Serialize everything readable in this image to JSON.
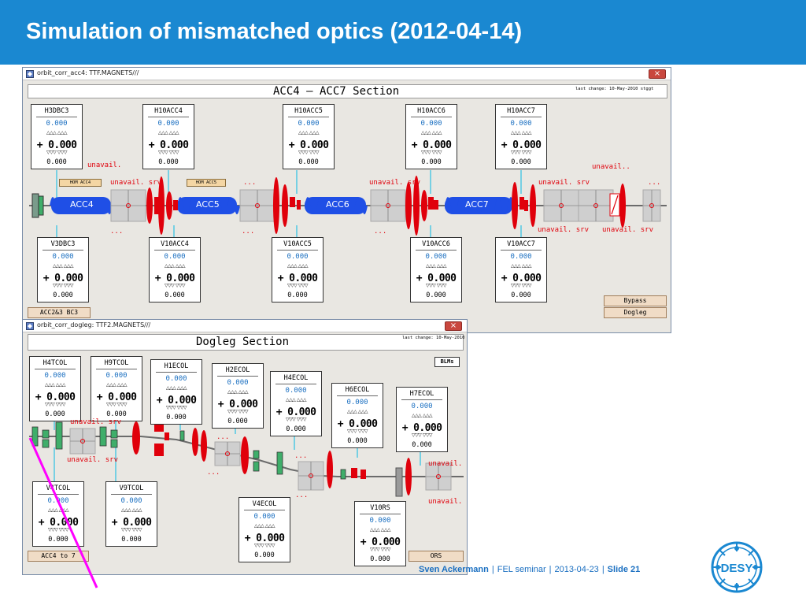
{
  "slide": {
    "title": "Simulation of mismatched optics (2012-04-14)",
    "header_color": "#1a88d1"
  },
  "window1": {
    "titlebar": "orbit_corr_acc4: TTF.MAGNETS///",
    "close": "×",
    "section_title": "ACC4 – ACC7 Section",
    "last_change": "last change: 10-May-2010 stggt",
    "top_magnets": [
      {
        "name": "H3DBC3",
        "setpoint": "0.000",
        "value": "+ 0.000",
        "readback": "0.000"
      },
      {
        "name": "H10ACC4",
        "setpoint": "0.000",
        "value": "+ 0.000",
        "readback": "0.000"
      },
      {
        "name": "H10ACC5",
        "setpoint": "0.000",
        "value": "+ 0.000",
        "readback": "0.000"
      },
      {
        "name": "H10ACC6",
        "setpoint": "0.000",
        "value": "+ 0.000",
        "readback": "0.000"
      },
      {
        "name": "H10ACC7",
        "setpoint": "0.000",
        "value": "+ 0.000",
        "readback": "0.000"
      }
    ],
    "bottom_magnets": [
      {
        "name": "V3DBC3",
        "setpoint": "0.000",
        "value": "+ 0.000",
        "readback": "0.000"
      },
      {
        "name": "V10ACC4",
        "setpoint": "0.000",
        "value": "+ 0.000",
        "readback": "0.000"
      },
      {
        "name": "V10ACC5",
        "setpoint": "0.000",
        "value": "+ 0.000",
        "readback": "0.000"
      },
      {
        "name": "V10ACC6",
        "setpoint": "0.000",
        "value": "+ 0.000",
        "readback": "0.000"
      },
      {
        "name": "V10ACC7",
        "setpoint": "0.000",
        "value": "+ 0.000",
        "readback": "0.000"
      }
    ],
    "cavities": [
      "ACC4",
      "ACC5",
      "ACC6",
      "ACC7"
    ],
    "hom_tags": [
      "HOM ACC4",
      "HOM ACC5"
    ],
    "unavail": "unavail.",
    "unavail_dots": "unavail..",
    "unavail_srv": "unavail. srv",
    "dots": "...",
    "buttons": {
      "left": "ACC2&3 BC3",
      "bypass": "Bypass",
      "dogleg": "Dogleg"
    }
  },
  "window2": {
    "titlebar": "orbit_corr_dogleg: TTF2.MAGNETS///",
    "close": "×",
    "section_title": "Dogleg Section",
    "last_change": "last change: 10-May-2010",
    "blms": "BLMs",
    "magnets": [
      {
        "name": "H4TCOL",
        "setpoint": "0.000",
        "value": "+ 0.000",
        "readback": "0.000"
      },
      {
        "name": "H9TCOL",
        "setpoint": "0.000",
        "value": "+ 0.000",
        "readback": "0.000"
      },
      {
        "name": "H1ECOL",
        "setpoint": "0.000",
        "value": "+ 0.000",
        "readback": "0.000"
      },
      {
        "name": "H2ECOL",
        "setpoint": "0.000",
        "value": "+ 0.000",
        "readback": "0.000"
      },
      {
        "name": "H4ECOL",
        "setpoint": "0.000",
        "value": "+ 0.000",
        "readback": "0.000"
      },
      {
        "name": "H6ECOL",
        "setpoint": "0.000",
        "value": "+ 0.000",
        "readback": "0.000"
      },
      {
        "name": "H7ECOL",
        "setpoint": "0.000",
        "value": "+ 0.000",
        "readback": "0.000"
      },
      {
        "name": "V4TCOL",
        "setpoint": "0.000",
        "value": "+ 0.000",
        "readback": "0.000"
      },
      {
        "name": "V9TCOL",
        "setpoint": "0.000",
        "value": "+ 0.000",
        "readback": "0.000"
      },
      {
        "name": "V4ECOL",
        "setpoint": "0.000",
        "value": "+ 0.000",
        "readback": "0.000"
      },
      {
        "name": "V10RS",
        "setpoint": "0.000",
        "value": "+ 0.000",
        "readback": "0.000"
      }
    ],
    "unavail": "unavail.",
    "unavail_srv": "unavail. srv",
    "dots": "...",
    "buttons": {
      "left": "ACC4 to 7",
      "right": "ORS"
    }
  },
  "footer": {
    "author": "Sven Ackermann",
    "event": "FEL seminar",
    "date": "2013-04-23",
    "slide": "Slide 21"
  },
  "logo_text": "DESY",
  "icons": {
    "window": "window-app-icon",
    "close": "close-icon",
    "logo": "desy-logo"
  },
  "colors": {
    "accent": "#1a88d1",
    "alarm": "#e0000b",
    "cavity": "#1f4fe6",
    "quad": "#e0000b",
    "corrector": "#3fae6a",
    "annotation": "#ff00ff"
  }
}
